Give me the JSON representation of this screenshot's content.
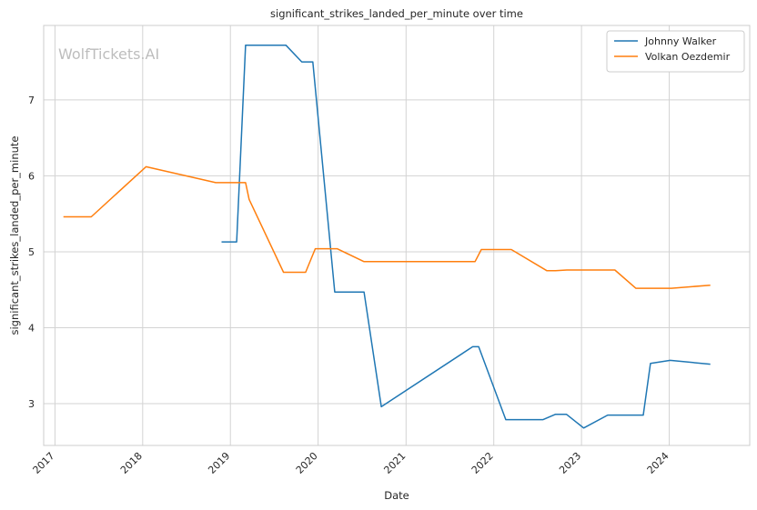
{
  "chart_data": {
    "type": "line",
    "title": "significant_strikes_landed_per_minute over time",
    "xlabel": "Date",
    "ylabel": "significant_strikes_landed_per_minute",
    "watermark": "WolfTickets.AI",
    "x_ticks": [
      "2017",
      "2018",
      "2019",
      "2020",
      "2021",
      "2022",
      "2023",
      "2024"
    ],
    "y_ticks": [
      "3",
      "4",
      "5",
      "6",
      "7"
    ],
    "xlim": [
      "2016-11-15",
      "2024-12-01"
    ],
    "ylim": [
      2.45,
      7.98
    ],
    "grid": true,
    "legend_position": "top-right",
    "series": [
      {
        "name": "Johnny Walker",
        "color": "#1f77b4",
        "points": [
          [
            "2018-11-25",
            5.13
          ],
          [
            "2019-01-27",
            5.13
          ],
          [
            "2019-03-05",
            7.72
          ],
          [
            "2019-08-20",
            7.72
          ],
          [
            "2019-10-25",
            7.5
          ],
          [
            "2019-12-10",
            7.5
          ],
          [
            "2020-03-10",
            4.47
          ],
          [
            "2020-07-10",
            4.47
          ],
          [
            "2020-09-20",
            2.96
          ],
          [
            "2021-10-05",
            3.75
          ],
          [
            "2021-10-30",
            3.75
          ],
          [
            "2022-02-20",
            2.79
          ],
          [
            "2022-07-25",
            2.79
          ],
          [
            "2022-09-15",
            2.86
          ],
          [
            "2022-10-30",
            2.86
          ],
          [
            "2023-01-10",
            2.68
          ],
          [
            "2023-04-20",
            2.85
          ],
          [
            "2023-09-15",
            2.85
          ],
          [
            "2023-10-15",
            3.53
          ],
          [
            "2024-01-05",
            3.57
          ],
          [
            "2024-06-20",
            3.52
          ]
        ]
      },
      {
        "name": "Volkan Oezdemir",
        "color": "#ff7f0e",
        "points": [
          [
            "2017-02-05",
            5.46
          ],
          [
            "2017-06-01",
            5.46
          ],
          [
            "2018-01-15",
            6.12
          ],
          [
            "2018-11-01",
            5.91
          ],
          [
            "2019-03-05",
            5.91
          ],
          [
            "2019-03-20",
            5.69
          ],
          [
            "2019-08-10",
            4.73
          ],
          [
            "2019-11-10",
            4.73
          ],
          [
            "2019-12-20",
            5.04
          ],
          [
            "2020-03-20",
            5.04
          ],
          [
            "2020-07-10",
            4.87
          ],
          [
            "2021-10-15",
            4.87
          ],
          [
            "2021-11-10",
            5.03
          ],
          [
            "2022-03-15",
            5.03
          ],
          [
            "2022-08-10",
            4.75
          ],
          [
            "2022-09-15",
            4.75
          ],
          [
            "2022-11-01",
            4.76
          ],
          [
            "2023-05-20",
            4.76
          ],
          [
            "2023-08-15",
            4.52
          ],
          [
            "2024-01-10",
            4.52
          ],
          [
            "2024-06-20",
            4.56
          ]
        ]
      }
    ]
  }
}
